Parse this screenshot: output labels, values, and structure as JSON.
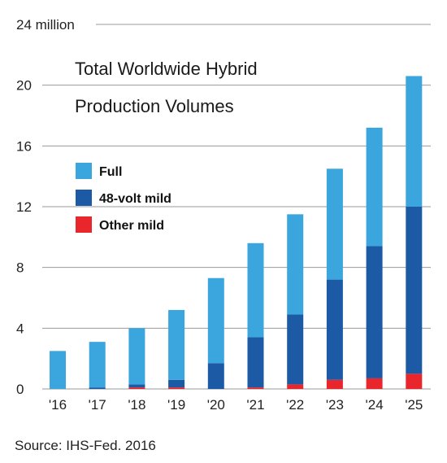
{
  "chart_data": {
    "type": "bar",
    "stacked": true,
    "title_lines": [
      "Total Worldwide Hybrid",
      "Production Volumes"
    ],
    "y_top_label": "24 million",
    "ylim": [
      0,
      24
    ],
    "yticks": [
      0,
      4,
      8,
      12,
      16,
      20
    ],
    "grid": true,
    "legend_position": "left",
    "categories": [
      "'16",
      "'17",
      "'18",
      "'19",
      "'20",
      "'21",
      "'22",
      "'23",
      "'24",
      "'25"
    ],
    "series": [
      {
        "name": "Other mild",
        "color": "#e8262b",
        "values": [
          0,
          0,
          0.1,
          0.1,
          0,
          0.1,
          0.3,
          0.6,
          0.7,
          1.0
        ]
      },
      {
        "name": "48-volt mild",
        "color": "#1c5aa6",
        "values": [
          0,
          0.1,
          0.2,
          0.5,
          1.7,
          3.3,
          4.6,
          6.6,
          8.7,
          11.0
        ]
      },
      {
        "name": "Full",
        "color": "#3aa6dd",
        "values": [
          2.5,
          3.0,
          3.7,
          4.6,
          5.6,
          6.2,
          6.6,
          7.3,
          7.8,
          8.6
        ]
      }
    ],
    "legend_order": [
      "Full",
      "48-volt mild",
      "Other mild"
    ],
    "source": "Source: IHS-Fed. 2016"
  }
}
